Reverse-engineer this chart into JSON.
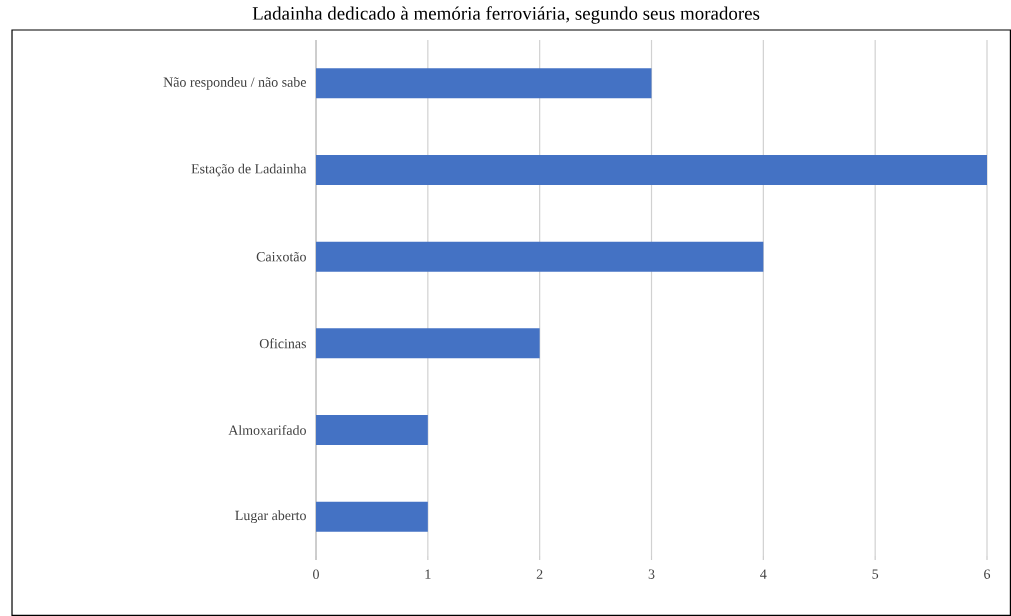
{
  "chart_data": {
    "type": "bar",
    "orientation": "horizontal",
    "title": "Ladainha dedicado à memória ferroviária, segundo seus moradores",
    "categories": [
      "Não respondeu / não sabe",
      "Estação de Ladainha",
      "Caixotão",
      "Oficinas",
      "Almoxarifado",
      "Lugar aberto"
    ],
    "values": [
      3,
      6,
      4,
      2,
      1,
      1
    ],
    "color": "#4472c4",
    "xlim": [
      0,
      6
    ],
    "xticks": [
      0,
      1,
      2,
      3,
      4,
      5,
      6
    ],
    "grid": "x"
  }
}
